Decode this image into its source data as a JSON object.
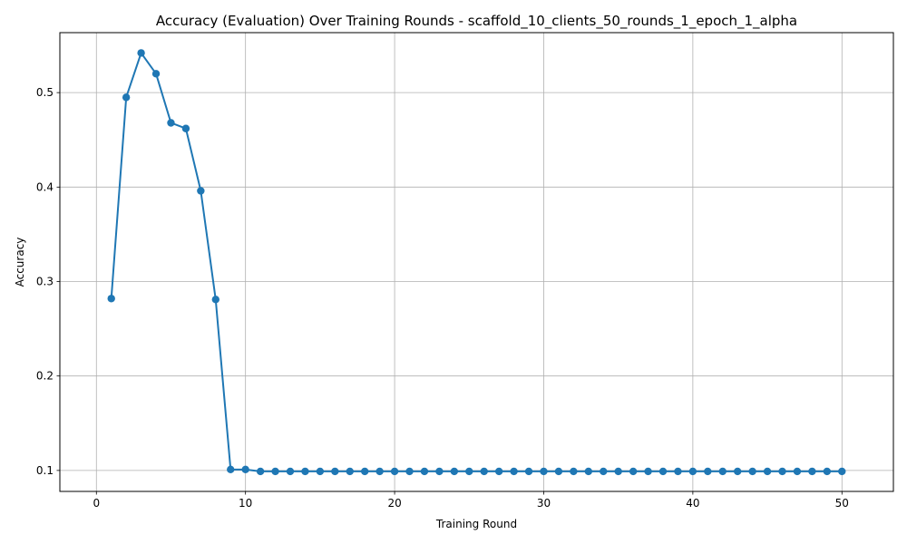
{
  "chart_data": {
    "type": "line",
    "title": "Accuracy (Evaluation) Over Training Rounds - scaffold_10_clients_50_rounds_1_epoch_1_alpha",
    "xlabel": "Training Round",
    "ylabel": "Accuracy",
    "xlim": [
      -2.45,
      53.45
    ],
    "ylim": [
      0.0778,
      0.5635
    ],
    "xticks": [
      0,
      10,
      20,
      30,
      40,
      50
    ],
    "xtick_labels": [
      "0",
      "10",
      "20",
      "30",
      "40",
      "50"
    ],
    "yticks": [
      0.1,
      0.2,
      0.3,
      0.4,
      0.5
    ],
    "ytick_labels": [
      "0.1",
      "0.2",
      "0.3",
      "0.4",
      "0.5"
    ],
    "grid": true,
    "legend": "none",
    "series": [
      {
        "color": "#1f77b4",
        "marker": "circle",
        "x": [
          1,
          2,
          3,
          4,
          5,
          6,
          7,
          8,
          9,
          10,
          11,
          12,
          13,
          14,
          15,
          16,
          17,
          18,
          19,
          20,
          21,
          22,
          23,
          24,
          25,
          26,
          27,
          28,
          29,
          30,
          31,
          32,
          33,
          34,
          35,
          36,
          37,
          38,
          39,
          40,
          41,
          42,
          43,
          44,
          45,
          46,
          47,
          48,
          49,
          50
        ],
        "values": [
          0.282,
          0.495,
          0.542,
          0.52,
          0.468,
          0.462,
          0.396,
          0.281,
          0.101,
          0.101,
          0.099,
          0.099,
          0.099,
          0.099,
          0.099,
          0.099,
          0.099,
          0.099,
          0.099,
          0.099,
          0.099,
          0.099,
          0.099,
          0.099,
          0.099,
          0.099,
          0.099,
          0.099,
          0.099,
          0.099,
          0.099,
          0.099,
          0.099,
          0.099,
          0.099,
          0.099,
          0.099,
          0.099,
          0.099,
          0.099,
          0.099,
          0.099,
          0.099,
          0.099,
          0.099,
          0.099,
          0.099,
          0.099,
          0.099,
          0.099
        ]
      }
    ]
  }
}
